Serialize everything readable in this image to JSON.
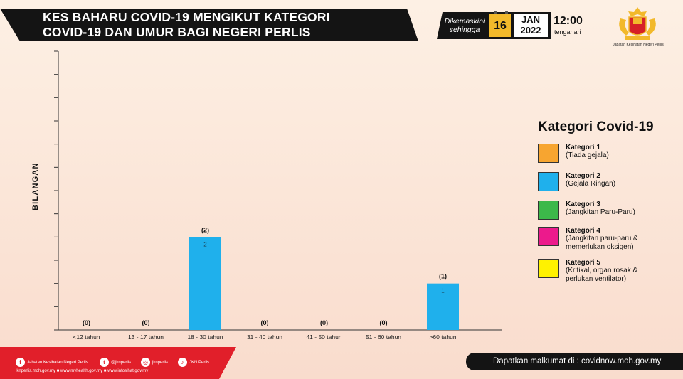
{
  "header": {
    "title_line1": "KES BAHARU COVID-19 MENGIKUT KATEGORI",
    "title_line2": "COVID-19 DAN UMUR BAGI NEGERI PERLIS"
  },
  "update": {
    "label_line1": "Dikemaskini",
    "label_line2": "sehingga",
    "day": "16",
    "month": "JAN",
    "year": "2022",
    "time": "12:00",
    "period": "tengahari"
  },
  "agency": {
    "name": "Jabatan Kesihatan Negeri Perlis"
  },
  "chart_data": {
    "type": "bar",
    "ylabel": "BILANGAN",
    "xlabel": "",
    "categories": [
      "<12 tahun",
      "13 - 17 tahun",
      "18 - 30 tahun",
      "31 - 40 tahun",
      "41 - 50 tahun",
      "51 - 60 tahun",
      ">60 tahun"
    ],
    "series": [
      {
        "name": "Kategori 1",
        "color": "#f7a530",
        "values": [
          0,
          0,
          0,
          0,
          0,
          0,
          0
        ]
      },
      {
        "name": "Kategori 2",
        "color": "#1fb0ec",
        "values": [
          0,
          0,
          2,
          0,
          0,
          0,
          1
        ]
      },
      {
        "name": "Kategori 3",
        "color": "#3cb84a",
        "values": [
          0,
          0,
          0,
          0,
          0,
          0,
          0
        ]
      },
      {
        "name": "Kategori 4",
        "color": "#ec1a8c",
        "values": [
          0,
          0,
          0,
          0,
          0,
          0,
          0
        ]
      },
      {
        "name": "Kategori 5",
        "color": "#fff200",
        "values": [
          0,
          0,
          0,
          0,
          0,
          0,
          0
        ]
      }
    ],
    "totals": [
      "(0)",
      "(0)",
      "(2)",
      "(0)",
      "(0)",
      "(0)",
      "(1)"
    ],
    "ylim": [
      0,
      6
    ],
    "tick_count": 13,
    "grid": false,
    "legend_placement": "right"
  },
  "legend": {
    "title": "Kategori Covid-19",
    "items": [
      {
        "name": "Kategori 1",
        "desc": "(Tiada gejala)",
        "color": "#f7a530"
      },
      {
        "name": "Kategori 2",
        "desc": "(Gejala Ringan)",
        "color": "#1fb0ec"
      },
      {
        "name": "Kategori 3",
        "desc": "(Jangkitan Paru-Paru)",
        "color": "#3cb84a"
      },
      {
        "name": "Kategori 4",
        "desc": "(Jangkitan paru-paru &\nmemerlukan oksigen)",
        "color": "#ec1a8c"
      },
      {
        "name": "Kategori 5",
        "desc": "(Kritikal, organ rosak &\nperlukan ventilator)",
        "color": "#fff200"
      }
    ]
  },
  "footer": {
    "socials": [
      {
        "icon": "facebook-icon",
        "glyph": "f",
        "label": "Jabatan Kesihatan Negeri Perlis"
      },
      {
        "icon": "twitter-icon",
        "glyph": "t",
        "label": "@jknperlis"
      },
      {
        "icon": "instagram-icon",
        "glyph": "◎",
        "label": "jknperlis"
      },
      {
        "icon": "tiktok-icon",
        "glyph": "♪",
        "label": "JKN Perlis"
      }
    ],
    "websites": "jknperlis.moh.gov.my  ■ www.myhealth.gov.my  ■ www.infosihat.gov.my",
    "info": "Dapatkan malkumat di : covidnow.moh.gov.my"
  }
}
